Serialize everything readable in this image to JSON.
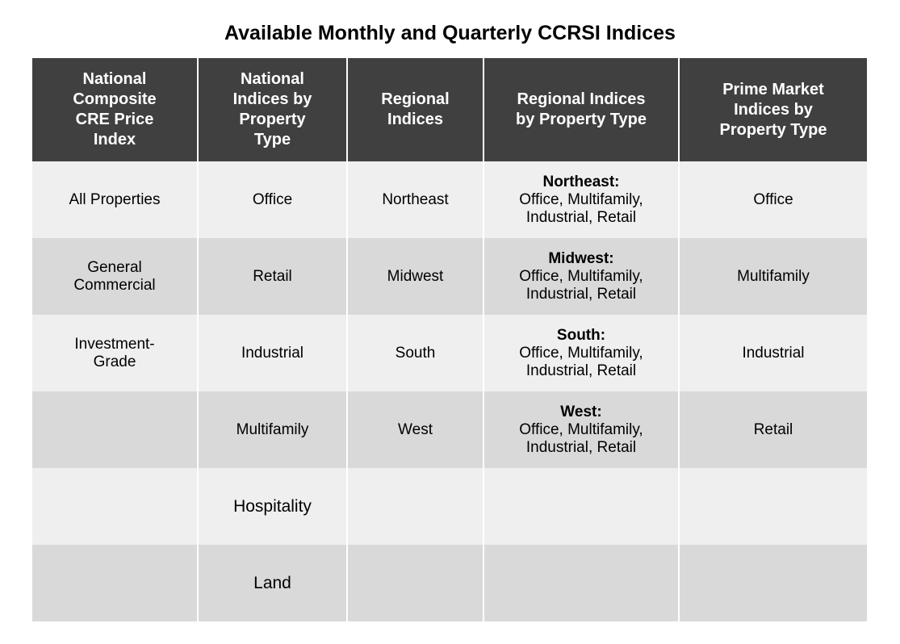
{
  "title": "Available Monthly and Quarterly CCRSI Indices",
  "headers": [
    "National Composite CRE Price Index",
    "National Indices by Property Type",
    "Regional Indices",
    "Regional Indices by Property Type",
    "Prime Market Indices by Property Type"
  ],
  "rows": [
    {
      "national_composite": "All Properties",
      "national_by_type": "Office",
      "regional": "Northeast",
      "regional_by_type": {
        "region": "Northeast:",
        "types": "Office, Multifamily, Industrial, Retail"
      },
      "prime_market": "Office"
    },
    {
      "national_composite": "General Commercial",
      "national_by_type": "Retail",
      "regional": "Midwest",
      "regional_by_type": {
        "region": "Midwest:",
        "types": "Office, Multifamily, Industrial, Retail"
      },
      "prime_market": "Multifamily"
    },
    {
      "national_composite": "Investment-Grade",
      "national_by_type": "Industrial",
      "regional": "South",
      "regional_by_type": {
        "region": "South:",
        "types": "Office, Multifamily, Industrial, Retail"
      },
      "prime_market": "Industrial"
    },
    {
      "national_composite": "",
      "national_by_type": "Multifamily",
      "regional": "West",
      "regional_by_type": {
        "region": "West:",
        "types": "Office, Multifamily, Industrial, Retail"
      },
      "prime_market": "Retail"
    },
    {
      "national_composite": "",
      "national_by_type": "Hospitality",
      "regional": "",
      "regional_by_type": {
        "region": "",
        "types": ""
      },
      "prime_market": ""
    },
    {
      "national_composite": "",
      "national_by_type": "Land",
      "regional": "",
      "regional_by_type": {
        "region": "",
        "types": ""
      },
      "prime_market": ""
    }
  ]
}
